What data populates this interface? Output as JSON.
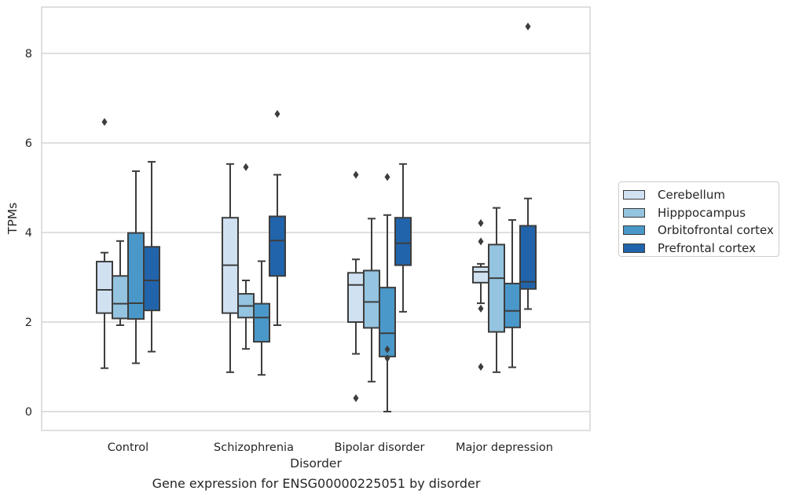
{
  "chart_data": {
    "type": "box",
    "title": "Gene expression for ENSG00000225051 by disorder",
    "xlabel": "Disorder",
    "ylabel": "TPMs",
    "ylim": [
      -0.4,
      9.05
    ],
    "yticks": [
      0,
      2,
      4,
      6,
      8
    ],
    "grid": "horizontal",
    "legend_position": "right",
    "categories": [
      "Control",
      "Schizophrenia",
      "Bipolar disorder",
      "Major depression"
    ],
    "series": [
      {
        "name": "Cerebellum",
        "color": "#d0e1f2",
        "boxes": [
          {
            "whislo": 0.97,
            "q1": 2.2,
            "med": 2.72,
            "q3": 3.35,
            "whishi": 3.55,
            "fliers": [
              6.47
            ]
          },
          {
            "whislo": 0.88,
            "q1": 2.2,
            "med": 3.27,
            "q3": 4.33,
            "whishi": 5.53,
            "fliers": []
          },
          {
            "whislo": 1.29,
            "q1": 2.0,
            "med": 2.83,
            "q3": 3.1,
            "whishi": 3.4,
            "fliers": [
              5.29,
              0.3
            ]
          },
          {
            "whislo": 2.42,
            "q1": 2.88,
            "med": 3.12,
            "q3": 3.23,
            "whishi": 3.3,
            "fliers": [
              4.21,
              3.8,
              2.3,
              1.0
            ]
          }
        ]
      },
      {
        "name": "Hipppocampus",
        "color": "#94c4df",
        "boxes": [
          {
            "whislo": 1.93,
            "q1": 2.08,
            "med": 2.41,
            "q3": 3.03,
            "whishi": 3.81,
            "fliers": []
          },
          {
            "whislo": 1.4,
            "q1": 2.1,
            "med": 2.36,
            "q3": 2.63,
            "whishi": 2.93,
            "fliers": [
              5.46
            ]
          },
          {
            "whislo": 0.67,
            "q1": 1.87,
            "med": 2.45,
            "q3": 3.15,
            "whishi": 4.31,
            "fliers": []
          },
          {
            "whislo": 0.88,
            "q1": 1.78,
            "med": 2.98,
            "q3": 3.73,
            "whishi": 4.55,
            "fliers": []
          }
        ]
      },
      {
        "name": "Orbitofrontal cortex",
        "color": "#4a98c9",
        "boxes": [
          {
            "whislo": 1.08,
            "q1": 2.07,
            "med": 2.42,
            "q3": 3.99,
            "whishi": 5.37,
            "fliers": []
          },
          {
            "whislo": 0.82,
            "q1": 1.56,
            "med": 2.1,
            "q3": 2.41,
            "whishi": 3.36,
            "fliers": []
          },
          {
            "whislo": 0.0,
            "q1": 1.23,
            "med": 1.75,
            "q3": 2.77,
            "whishi": 4.39,
            "fliers": [
              5.24,
              1.39,
              1.19
            ]
          },
          {
            "whislo": 0.99,
            "q1": 1.88,
            "med": 2.25,
            "q3": 2.86,
            "whishi": 4.28,
            "fliers": []
          }
        ]
      },
      {
        "name": "Prefrontal cortex",
        "color": "#2164ab",
        "boxes": [
          {
            "whislo": 1.34,
            "q1": 2.26,
            "med": 2.93,
            "q3": 3.68,
            "whishi": 5.58,
            "fliers": []
          },
          {
            "whislo": 1.93,
            "q1": 3.03,
            "med": 3.82,
            "q3": 4.36,
            "whishi": 5.29,
            "fliers": [
              6.65
            ]
          },
          {
            "whislo": 2.23,
            "q1": 3.27,
            "med": 3.76,
            "q3": 4.33,
            "whishi": 5.53,
            "fliers": []
          },
          {
            "whislo": 2.29,
            "q1": 2.74,
            "med": 2.9,
            "q3": 4.15,
            "whishi": 4.76,
            "fliers": [
              8.6
            ]
          }
        ]
      }
    ]
  }
}
